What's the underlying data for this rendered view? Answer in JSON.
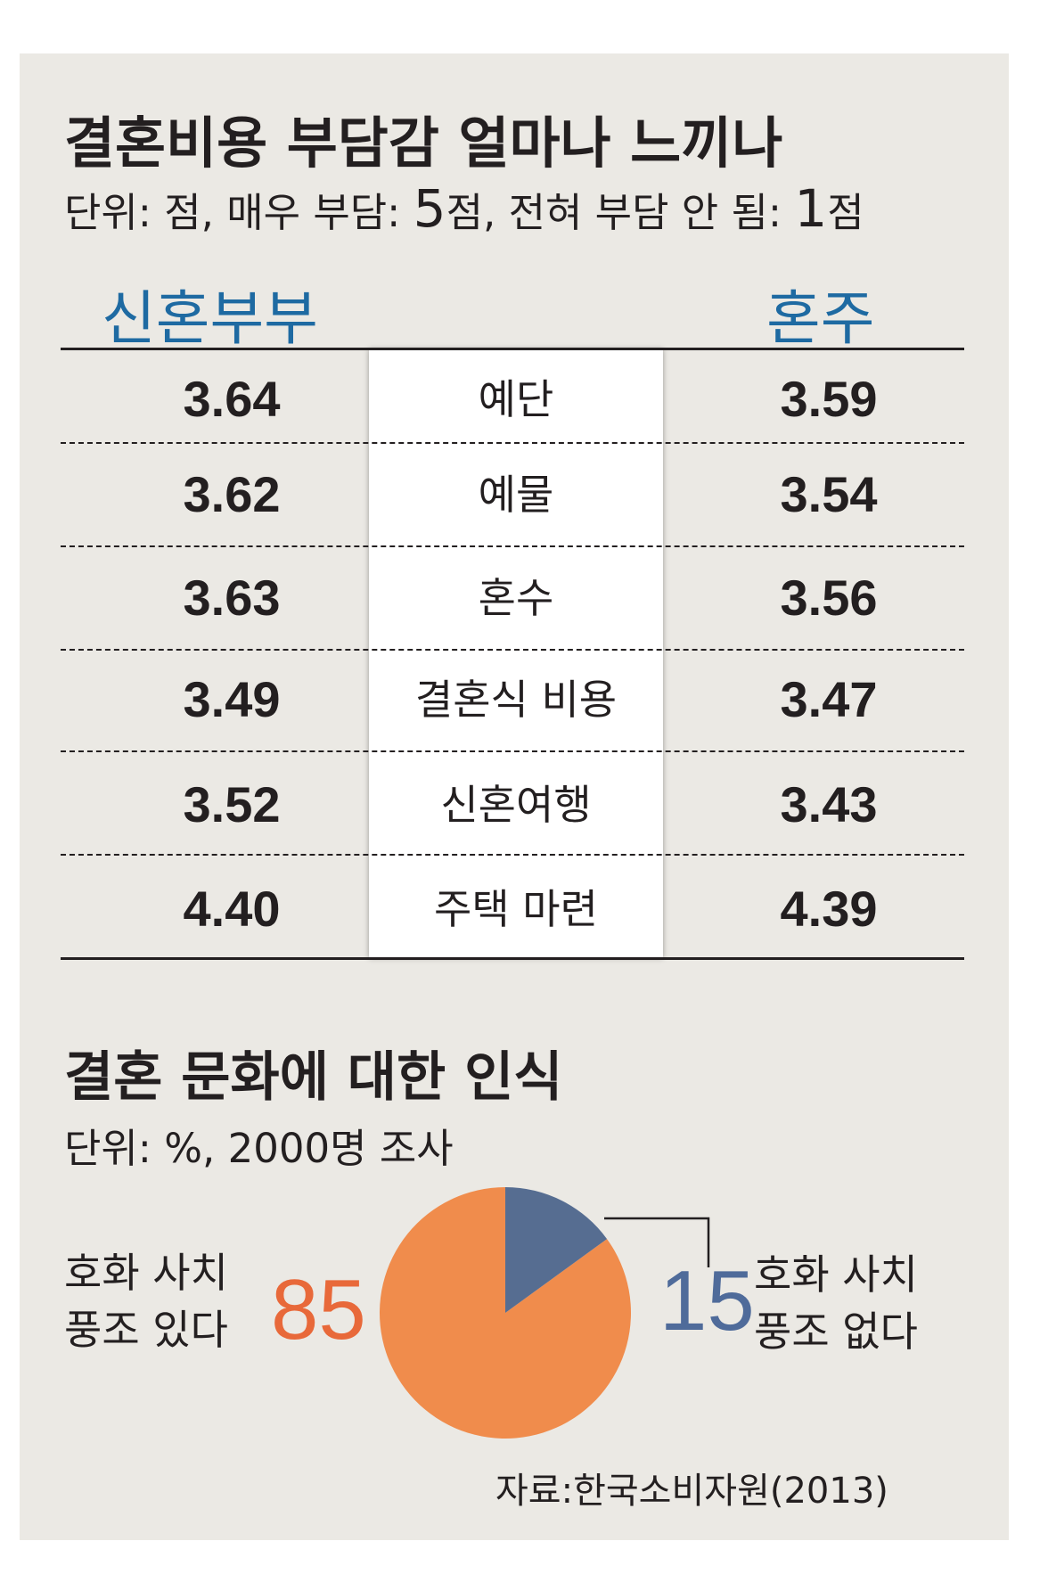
{
  "section1": {
    "title": "결혼비용 부담감 얼마나 느끼나",
    "unit_prefix": "단위: 점, 매우 부담: ",
    "unit_high": "5",
    "unit_mid": "점, 전혀 부담 안 됨: ",
    "unit_low": "1",
    "unit_end": "점",
    "col_left": "신혼부부",
    "col_right": "혼주"
  },
  "section2": {
    "title": "결혼 문화에 대한 인식",
    "unit": "단위: %, 2000명 조사"
  },
  "pie_labels": {
    "left_line1": "호화 사치",
    "left_line2": "풍조 있다",
    "right_line1": "호화 사치",
    "right_line2": "풍조 없다"
  },
  "source": "자료:한국소비자원(2013)",
  "colors": {
    "accent_blue": "#1e6aa2",
    "pie_orange": "#f08c4c",
    "pie_blue": "#566d91",
    "orange_text": "#e8693a",
    "blue_text": "#4f6b9a"
  },
  "chart_data": [
    {
      "type": "table",
      "title": "결혼비용 부담감 얼마나 느끼나",
      "columns": [
        "신혼부부",
        "혼주"
      ],
      "rows": [
        {
          "category": "예단",
          "values": [
            "3.64",
            "3.59"
          ]
        },
        {
          "category": "예물",
          "values": [
            "3.62",
            "3.54"
          ]
        },
        {
          "category": "혼수",
          "values": [
            "3.63",
            "3.56"
          ]
        },
        {
          "category": "결혼식 비용",
          "values": [
            "3.49",
            "3.47"
          ]
        },
        {
          "category": "신혼여행",
          "values": [
            "3.52",
            "3.43"
          ]
        },
        {
          "category": "주택 마련",
          "values": [
            "4.40",
            "4.39"
          ]
        }
      ]
    },
    {
      "type": "pie",
      "title": "결혼 문화에 대한 인식",
      "slices": [
        {
          "label": "호화 사치 풍조 있다",
          "value": "85",
          "color": "#f08c4c"
        },
        {
          "label": "호화 사치 풍조 없다",
          "value": "15",
          "color": "#566d91"
        }
      ]
    }
  ]
}
